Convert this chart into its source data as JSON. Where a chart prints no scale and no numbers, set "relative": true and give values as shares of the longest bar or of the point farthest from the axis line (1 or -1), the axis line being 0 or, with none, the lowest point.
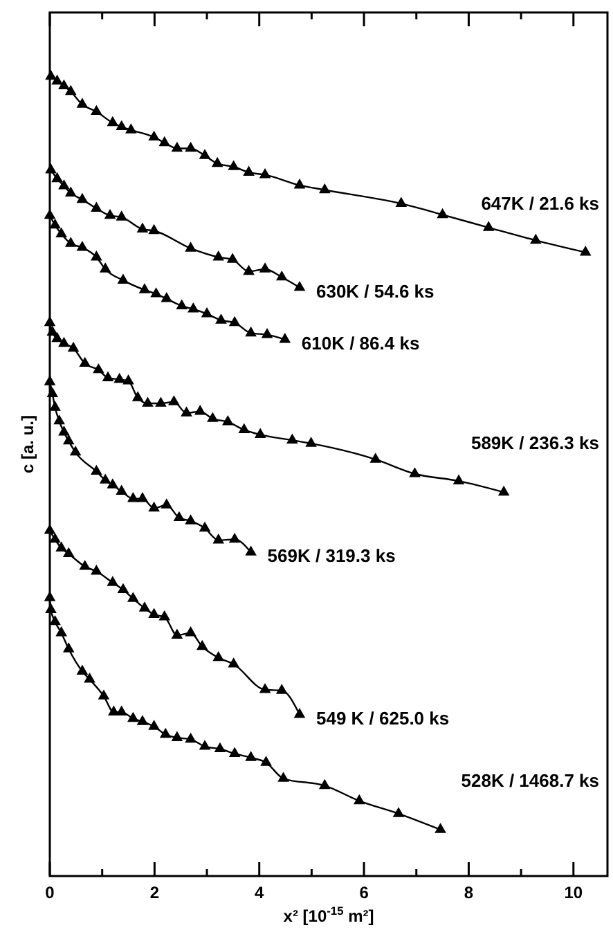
{
  "chart_data": {
    "type": "line",
    "relative": true,
    "xlabel": "x² [10$^{-15}$ m²]",
    "ylabel": "c [a. u.]",
    "marker": "triangle",
    "line_style": "solid",
    "grid": false,
    "xlim": [
      0,
      10.65
    ],
    "xticks": [
      0,
      {
        "value": 1,
        "label": null
      },
      2,
      {
        "value": 3,
        "label": null
      },
      4,
      {
        "value": 5,
        "label": null
      },
      6,
      {
        "value": 7,
        "label": null
      },
      8,
      {
        "value": 9,
        "label": null
      },
      10
    ],
    "series": [
      {
        "name": "647K / 21.6 ks",
        "color": "#000000",
        "x": [
          0.02,
          0.14,
          0.27,
          0.4,
          0.62,
          0.89,
          1.2,
          1.37,
          1.55,
          1.99,
          2.19,
          2.43,
          2.69,
          2.96,
          3.2,
          3.51,
          3.8,
          4.11,
          4.77,
          5.25,
          6.71,
          7.5,
          8.38,
          9.28,
          10.23
        ],
        "values": [
          1.0,
          0.994,
          0.988,
          0.981,
          0.965,
          0.956,
          0.942,
          0.937,
          0.933,
          0.924,
          0.917,
          0.91,
          0.91,
          0.901,
          0.891,
          0.887,
          0.88,
          0.877,
          0.864,
          0.858,
          0.841,
          0.827,
          0.811,
          0.795,
          0.78
        ]
      },
      {
        "name": "630K / 54.6 ks",
        "color": "#000000",
        "x": [
          0.02,
          0.14,
          0.27,
          0.4,
          0.62,
          0.89,
          1.15,
          1.37,
          1.77,
          1.99,
          2.69,
          3.22,
          3.49,
          3.8,
          4.11,
          4.43,
          4.77
        ],
        "values": [
          0.883,
          0.872,
          0.863,
          0.854,
          0.846,
          0.835,
          0.826,
          0.824,
          0.809,
          0.807,
          0.785,
          0.774,
          0.771,
          0.756,
          0.759,
          0.749,
          0.736
        ]
      },
      {
        "name": "610K / 86.4 ks",
        "color": "#000000",
        "x": [
          0.0,
          0.1,
          0.22,
          0.4,
          0.62,
          0.89,
          1.06,
          1.4,
          1.81,
          2.03,
          2.23,
          2.52,
          2.74,
          3.0,
          3.27,
          3.53,
          3.84,
          4.15,
          4.49
        ],
        "values": [
          0.826,
          0.814,
          0.803,
          0.791,
          0.786,
          0.774,
          0.759,
          0.745,
          0.733,
          0.728,
          0.722,
          0.713,
          0.709,
          0.703,
          0.695,
          0.692,
          0.679,
          0.677,
          0.671
        ]
      },
      {
        "name": "589K / 236.3 ks",
        "color": "#000000",
        "x": [
          0.0,
          0.05,
          0.14,
          0.27,
          0.45,
          0.67,
          0.93,
          1.11,
          1.33,
          1.5,
          1.68,
          1.87,
          2.12,
          2.37,
          2.61,
          2.87,
          3.11,
          3.4,
          3.71,
          4.02,
          4.63,
          4.99,
          6.22,
          6.97,
          7.81,
          8.67
        ],
        "values": [
          0.692,
          0.68,
          0.672,
          0.666,
          0.66,
          0.641,
          0.633,
          0.623,
          0.621,
          0.619,
          0.598,
          0.591,
          0.591,
          0.593,
          0.579,
          0.581,
          0.572,
          0.568,
          0.558,
          0.552,
          0.545,
          0.541,
          0.521,
          0.503,
          0.494,
          0.48
        ]
      },
      {
        "name": "569K / 319.3 ks",
        "color": "#000000",
        "x": [
          0.0,
          0.05,
          0.1,
          0.18,
          0.27,
          0.36,
          0.49,
          0.89,
          1.06,
          1.2,
          1.37,
          1.59,
          1.77,
          1.99,
          2.23,
          2.47,
          2.69,
          2.96,
          3.22,
          3.53,
          3.84
        ],
        "values": [
          0.618,
          0.603,
          0.586,
          0.569,
          0.555,
          0.544,
          0.53,
          0.506,
          0.495,
          0.489,
          0.481,
          0.472,
          0.472,
          0.46,
          0.464,
          0.448,
          0.444,
          0.435,
          0.42,
          0.421,
          0.405
        ]
      },
      {
        "name": "549 K / 625.0 ks",
        "color": "#000000",
        "x": [
          0.0,
          0.1,
          0.22,
          0.36,
          0.67,
          0.89,
          1.2,
          1.4,
          1.59,
          1.81,
          1.99,
          2.19,
          2.43,
          2.69,
          2.91,
          3.22,
          3.51,
          4.11,
          4.43,
          4.77
        ],
        "values": [
          0.432,
          0.421,
          0.41,
          0.403,
          0.387,
          0.381,
          0.367,
          0.358,
          0.347,
          0.335,
          0.327,
          0.324,
          0.301,
          0.304,
          0.287,
          0.273,
          0.265,
          0.233,
          0.232,
          0.202
        ]
      },
      {
        "name": "528K / 1468.7 ks",
        "color": "#000000",
        "x": [
          0.0,
          0.02,
          0.1,
          0.22,
          0.36,
          0.62,
          0.76,
          1.03,
          1.22,
          1.37,
          1.59,
          1.77,
          1.99,
          2.21,
          2.43,
          2.69,
          2.96,
          3.25,
          3.53,
          3.84,
          4.13,
          4.46,
          5.25,
          5.91,
          6.66,
          7.46
        ],
        "values": [
          0.348,
          0.333,
          0.318,
          0.304,
          0.284,
          0.256,
          0.246,
          0.225,
          0.205,
          0.205,
          0.197,
          0.193,
          0.187,
          0.177,
          0.173,
          0.171,
          0.162,
          0.159,
          0.153,
          0.148,
          0.142,
          0.122,
          0.113,
          0.094,
          0.078,
          0.058
        ]
      }
    ]
  }
}
